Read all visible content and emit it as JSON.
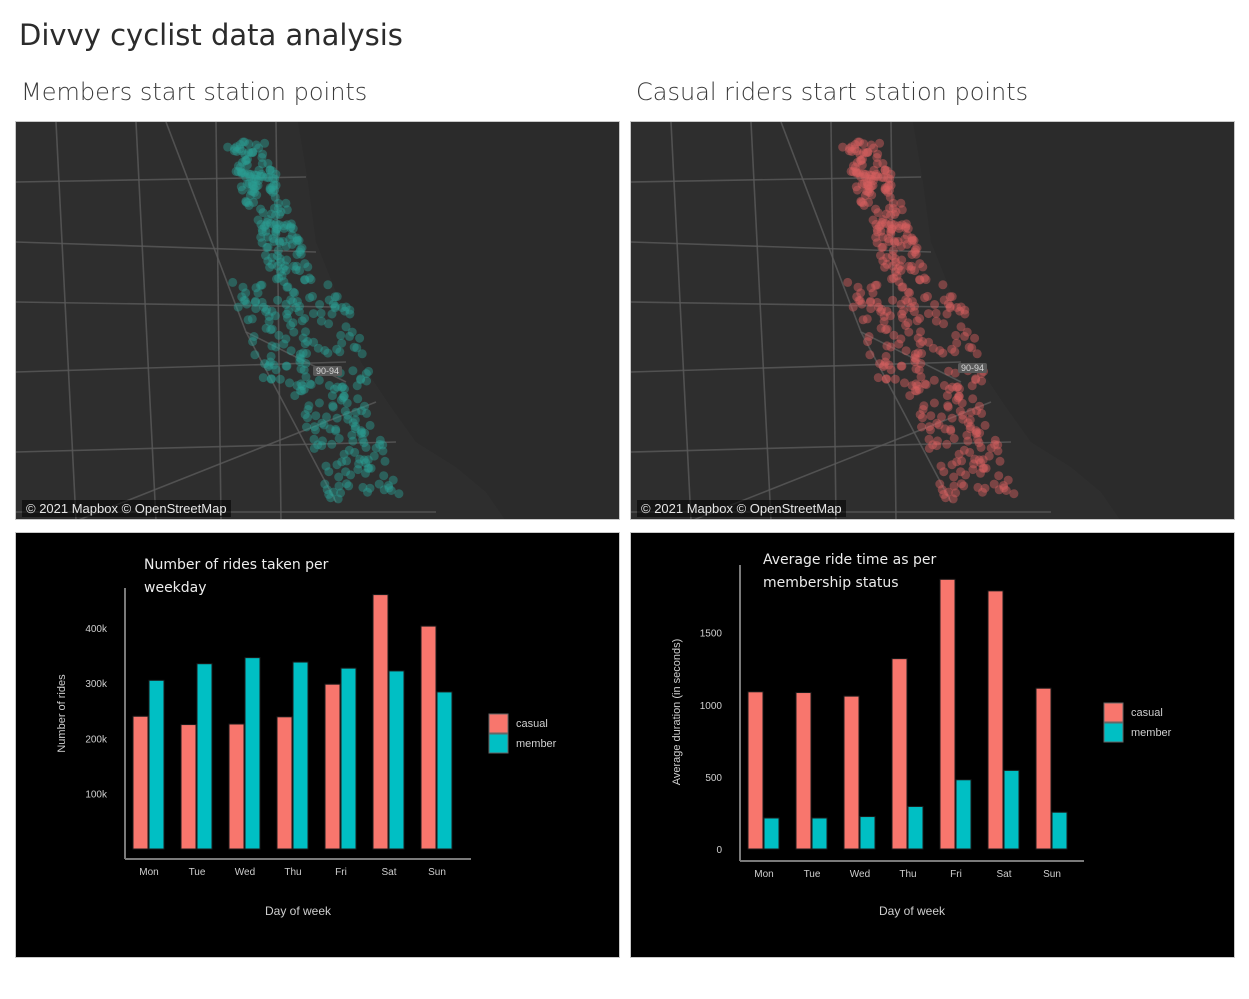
{
  "dashboard": {
    "title": "Divvy cyclist data analysis",
    "left_subtitle": "Members start station points",
    "right_subtitle": "Casual riders start station points"
  },
  "maps": {
    "attribution": "© 2021 Mapbox © OpenStreetMap",
    "highway_shield": "90-94",
    "member_color": "#2a9d93",
    "casual_color": "#d8605f",
    "land_color": "#2e2e2e",
    "water_color": "#2b2b2b",
    "road_color": "#5a5a5a"
  },
  "colors": {
    "casual": "#f8766d",
    "member": "#00bfc4",
    "axis_text": "#cfcfcf"
  },
  "chart_data": [
    {
      "type": "bar",
      "title": "Number of rides taken per weekday",
      "xlabel": "Day of week",
      "ylabel": "Number of rides",
      "categories": [
        "Mon",
        "Tue",
        "Wed",
        "Thu",
        "Fri",
        "Sat",
        "Sun"
      ],
      "series": [
        {
          "name": "casual",
          "values": [
            240000,
            225000,
            226000,
            239000,
            298000,
            460000,
            403000
          ]
        },
        {
          "name": "member",
          "values": [
            305000,
            335000,
            346000,
            338000,
            327000,
            322000,
            284000
          ]
        }
      ],
      "yticks": [
        100000,
        200000,
        300000,
        400000
      ],
      "ytick_labels": [
        "100k",
        "200k",
        "300k",
        "400k"
      ],
      "ylim": [
        0,
        490000
      ],
      "legend": "right",
      "grid": false
    },
    {
      "type": "bar",
      "title": "Average ride time as per membership status",
      "xlabel": "Day of week",
      "ylabel": "Average duration (in seconds)",
      "categories": [
        "Mon",
        "Tue",
        "Wed",
        "Thu",
        "Fri",
        "Sat",
        "Sun"
      ],
      "series": [
        {
          "name": "casual",
          "values": [
            1090,
            1085,
            1060,
            1320,
            1870,
            1790,
            1115
          ]
        },
        {
          "name": "member",
          "values": [
            215,
            215,
            225,
            295,
            480,
            545,
            255
          ]
        }
      ],
      "yticks": [
        0,
        500,
        1000,
        1500
      ],
      "ytick_labels": [
        "0",
        "500",
        "1000",
        "1500"
      ],
      "ylim": [
        0,
        1900
      ],
      "legend": "right",
      "grid": false
    }
  ]
}
